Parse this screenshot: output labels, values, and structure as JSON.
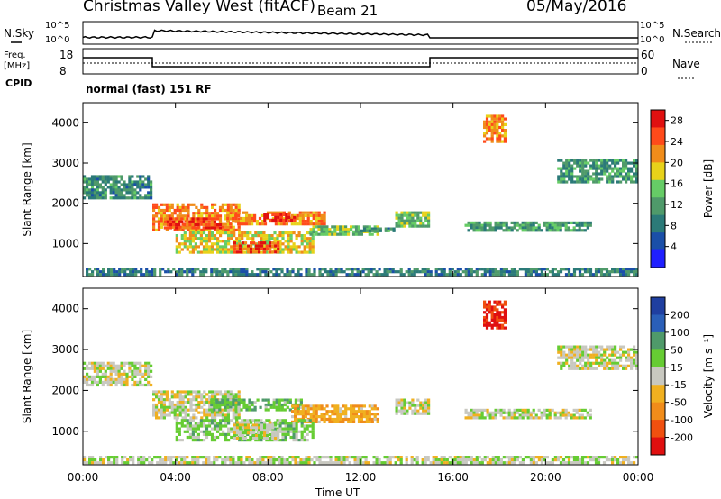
{
  "header": {
    "station": "Christmas Valley West (fitACF)",
    "beam": "Beam 21",
    "date": "05/May/2016"
  },
  "nsky_panel": {
    "left_label": "N.Sky",
    "left_ticks": [
      "10^5",
      "10^0"
    ],
    "right_label": "N.Search",
    "right_ticks": [
      "10^5",
      "10^0"
    ]
  },
  "freq_panel": {
    "left_label_1": "Freq.",
    "left_label_2": "[MHz]",
    "left_ticks": [
      "18",
      "8"
    ],
    "right_label": "Nave",
    "right_ticks": [
      "60",
      "0"
    ]
  },
  "cpid": {
    "label": "CPID",
    "value": "normal (fast) 151 RF"
  },
  "colors": {
    "power_scale": [
      "#1f1fff",
      "#1a4fa8",
      "#2b7a78",
      "#4f9a6a",
      "#66cc66",
      "#e8d21a",
      "#f08c1a",
      "#ff4a1a",
      "#e01010"
    ],
    "velocity_scale": [
      "#1f3fa0",
      "#2a5fb8",
      "#4f9a6a",
      "#66cc33",
      "#c8c8c0",
      "#f0b020",
      "#f08c1a",
      "#f05010",
      "#e01010"
    ]
  },
  "chart_data": [
    {
      "type": "heatmap",
      "title": "",
      "xlabel": "Time UT",
      "ylabel": "Slant Range [km]",
      "xticks": [
        "00:00",
        "04:00",
        "08:00",
        "12:00",
        "16:00",
        "20:00",
        "00:00"
      ],
      "xlim_hours": [
        0,
        24
      ],
      "yticks": [
        1000,
        2000,
        3000,
        4000
      ],
      "ylim_km": [
        180,
        4500
      ],
      "colorbar": {
        "label": "Power [dB]",
        "ticks": [
          4,
          8,
          12,
          16,
          20,
          24,
          28
        ],
        "range": [
          0,
          30
        ]
      },
      "echo_regions": [
        {
          "t_start": 0.0,
          "t_end": 3.0,
          "r_low": 2100,
          "r_high": 2700,
          "value": 10
        },
        {
          "t_start": 3.0,
          "t_end": 6.8,
          "r_low": 1300,
          "r_high": 2000,
          "value": 22
        },
        {
          "t_start": 3.5,
          "t_end": 6.0,
          "r_low": 1350,
          "r_high": 1650,
          "value": 26
        },
        {
          "t_start": 6.2,
          "t_end": 10.5,
          "r_low": 1450,
          "r_high": 1800,
          "value": 22
        },
        {
          "t_start": 7.8,
          "t_end": 9.2,
          "r_low": 1550,
          "r_high": 1750,
          "value": 28
        },
        {
          "t_start": 4.0,
          "t_end": 10.0,
          "r_low": 750,
          "r_high": 1300,
          "value": 18
        },
        {
          "t_start": 6.5,
          "t_end": 8.5,
          "r_low": 750,
          "r_high": 1050,
          "value": 26
        },
        {
          "t_start": 9.8,
          "t_end": 12.8,
          "r_low": 1200,
          "r_high": 1450,
          "value": 14
        },
        {
          "t_start": 12.0,
          "t_end": 13.5,
          "r_low": 1300,
          "r_high": 1400,
          "value": 10
        },
        {
          "t_start": 13.5,
          "t_end": 15.0,
          "r_low": 1400,
          "r_high": 1800,
          "value": 14
        },
        {
          "t_start": 16.5,
          "t_end": 22.0,
          "r_low": 1300,
          "r_high": 1550,
          "value": 12
        },
        {
          "t_start": 20.5,
          "t_end": 24.0,
          "r_low": 2500,
          "r_high": 3100,
          "value": 11
        },
        {
          "t_start": 17.3,
          "t_end": 18.3,
          "r_low": 3500,
          "r_high": 4200,
          "value": 22
        },
        {
          "t_start": 0.0,
          "t_end": 24.0,
          "r_low": 200,
          "r_high": 400,
          "value": 9
        }
      ]
    },
    {
      "type": "heatmap",
      "title": "",
      "xlabel": "Time UT",
      "ylabel": "Slant Range [km]",
      "xticks": [
        "00:00",
        "04:00",
        "08:00",
        "12:00",
        "16:00",
        "20:00",
        "00:00"
      ],
      "xlim_hours": [
        0,
        24
      ],
      "yticks": [
        1000,
        2000,
        3000,
        4000
      ],
      "ylim_km": [
        180,
        4500
      ],
      "colorbar": {
        "label": "Velocity [m s^-1]",
        "ticks": [
          200,
          100,
          50,
          15,
          -15,
          -50,
          -100,
          -200
        ],
        "range": [
          -250,
          250
        ]
      },
      "echo_regions": [
        {
          "t_start": 0.0,
          "t_end": 3.0,
          "r_low": 2100,
          "r_high": 2700,
          "value": 0
        },
        {
          "t_start": 3.0,
          "t_end": 6.8,
          "r_low": 1300,
          "r_high": 2000,
          "value": 0
        },
        {
          "t_start": 5.5,
          "t_end": 9.5,
          "r_low": 1500,
          "r_high": 1800,
          "value": 40
        },
        {
          "t_start": 9.0,
          "t_end": 12.8,
          "r_low": 1200,
          "r_high": 1650,
          "value": -40
        },
        {
          "t_start": 4.0,
          "t_end": 10.0,
          "r_low": 750,
          "r_high": 1300,
          "value": 30
        },
        {
          "t_start": 6.5,
          "t_end": 8.5,
          "r_low": 800,
          "r_high": 1250,
          "value": 0
        },
        {
          "t_start": 13.5,
          "t_end": 15.0,
          "r_low": 1400,
          "r_high": 1800,
          "value": 0
        },
        {
          "t_start": 16.5,
          "t_end": 22.0,
          "r_low": 1300,
          "r_high": 1550,
          "value": 0
        },
        {
          "t_start": 20.5,
          "t_end": 24.0,
          "r_low": 2500,
          "r_high": 3100,
          "value": 0
        },
        {
          "t_start": 17.3,
          "t_end": 18.3,
          "r_low": 3500,
          "r_high": 4200,
          "value": -200
        },
        {
          "t_start": 0.0,
          "t_end": 24.0,
          "r_low": 200,
          "r_high": 400,
          "value": 5
        }
      ]
    }
  ]
}
